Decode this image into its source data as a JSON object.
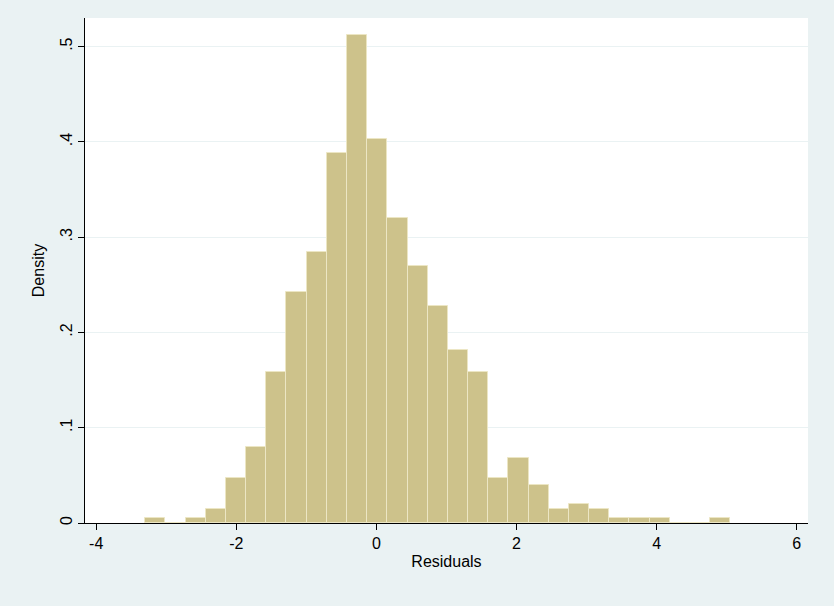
{
  "chart_data": {
    "type": "histogram",
    "x_label": "Residuals",
    "y_label": "Density",
    "bins": [
      -3.3,
      -3.012,
      -2.724,
      -2.436,
      -2.148,
      -1.86,
      -1.572,
      -1.284,
      -0.996,
      -0.708,
      -0.42,
      -0.132,
      0.156,
      0.444,
      0.732,
      1.02,
      1.308,
      1.596,
      1.884,
      2.172,
      2.46,
      2.748,
      3.036,
      3.324,
      3.612,
      3.9,
      4.188,
      4.476,
      4.764,
      5.052
    ],
    "values": [
      0.005,
      0,
      0.005,
      0.015,
      0.047,
      0.08,
      0.158,
      0.242,
      0.284,
      0.388,
      0.512,
      0.403,
      0.32,
      0.27,
      0.228,
      0.182,
      0.158,
      0.047,
      0.068,
      0.04,
      0.015,
      0.02,
      0.015,
      0.005,
      0.005,
      0.005,
      0,
      0,
      0.005
    ],
    "color": "#cdc28b",
    "xlim": [
      -4.16,
      6.16
    ],
    "xticks": [
      -4,
      -2,
      0,
      2,
      4,
      6
    ],
    "ylim": [
      0,
      0.53
    ],
    "yticks": [
      0,
      {
        "value": 0.1,
        "label": ".1"
      },
      {
        "value": 0.2,
        "label": ".2"
      },
      {
        "value": 0.3,
        "label": ".3"
      },
      {
        "value": 0.4,
        "label": ".4"
      },
      {
        "value": 0.5,
        "label": ".5"
      }
    ],
    "grid": true
  }
}
